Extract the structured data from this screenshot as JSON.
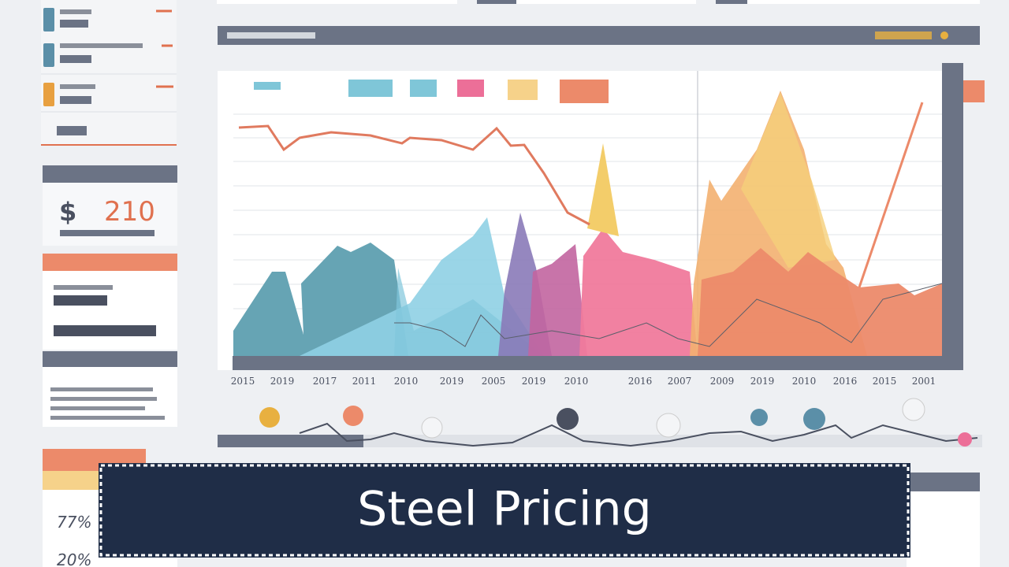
{
  "banner": {
    "title": "Steel Pricing"
  },
  "sidebar": {
    "price_symbol": "$",
    "price": "210",
    "stats": [
      "77%",
      "20%"
    ]
  },
  "chart": {
    "years": [
      "2015",
      "2019",
      "2017",
      "2011",
      "2010",
      "2019",
      "2005",
      "2019",
      "2010",
      "2016",
      "2007",
      "2009",
      "2019",
      "2010",
      "2016",
      "2015",
      "2001"
    ]
  }
}
